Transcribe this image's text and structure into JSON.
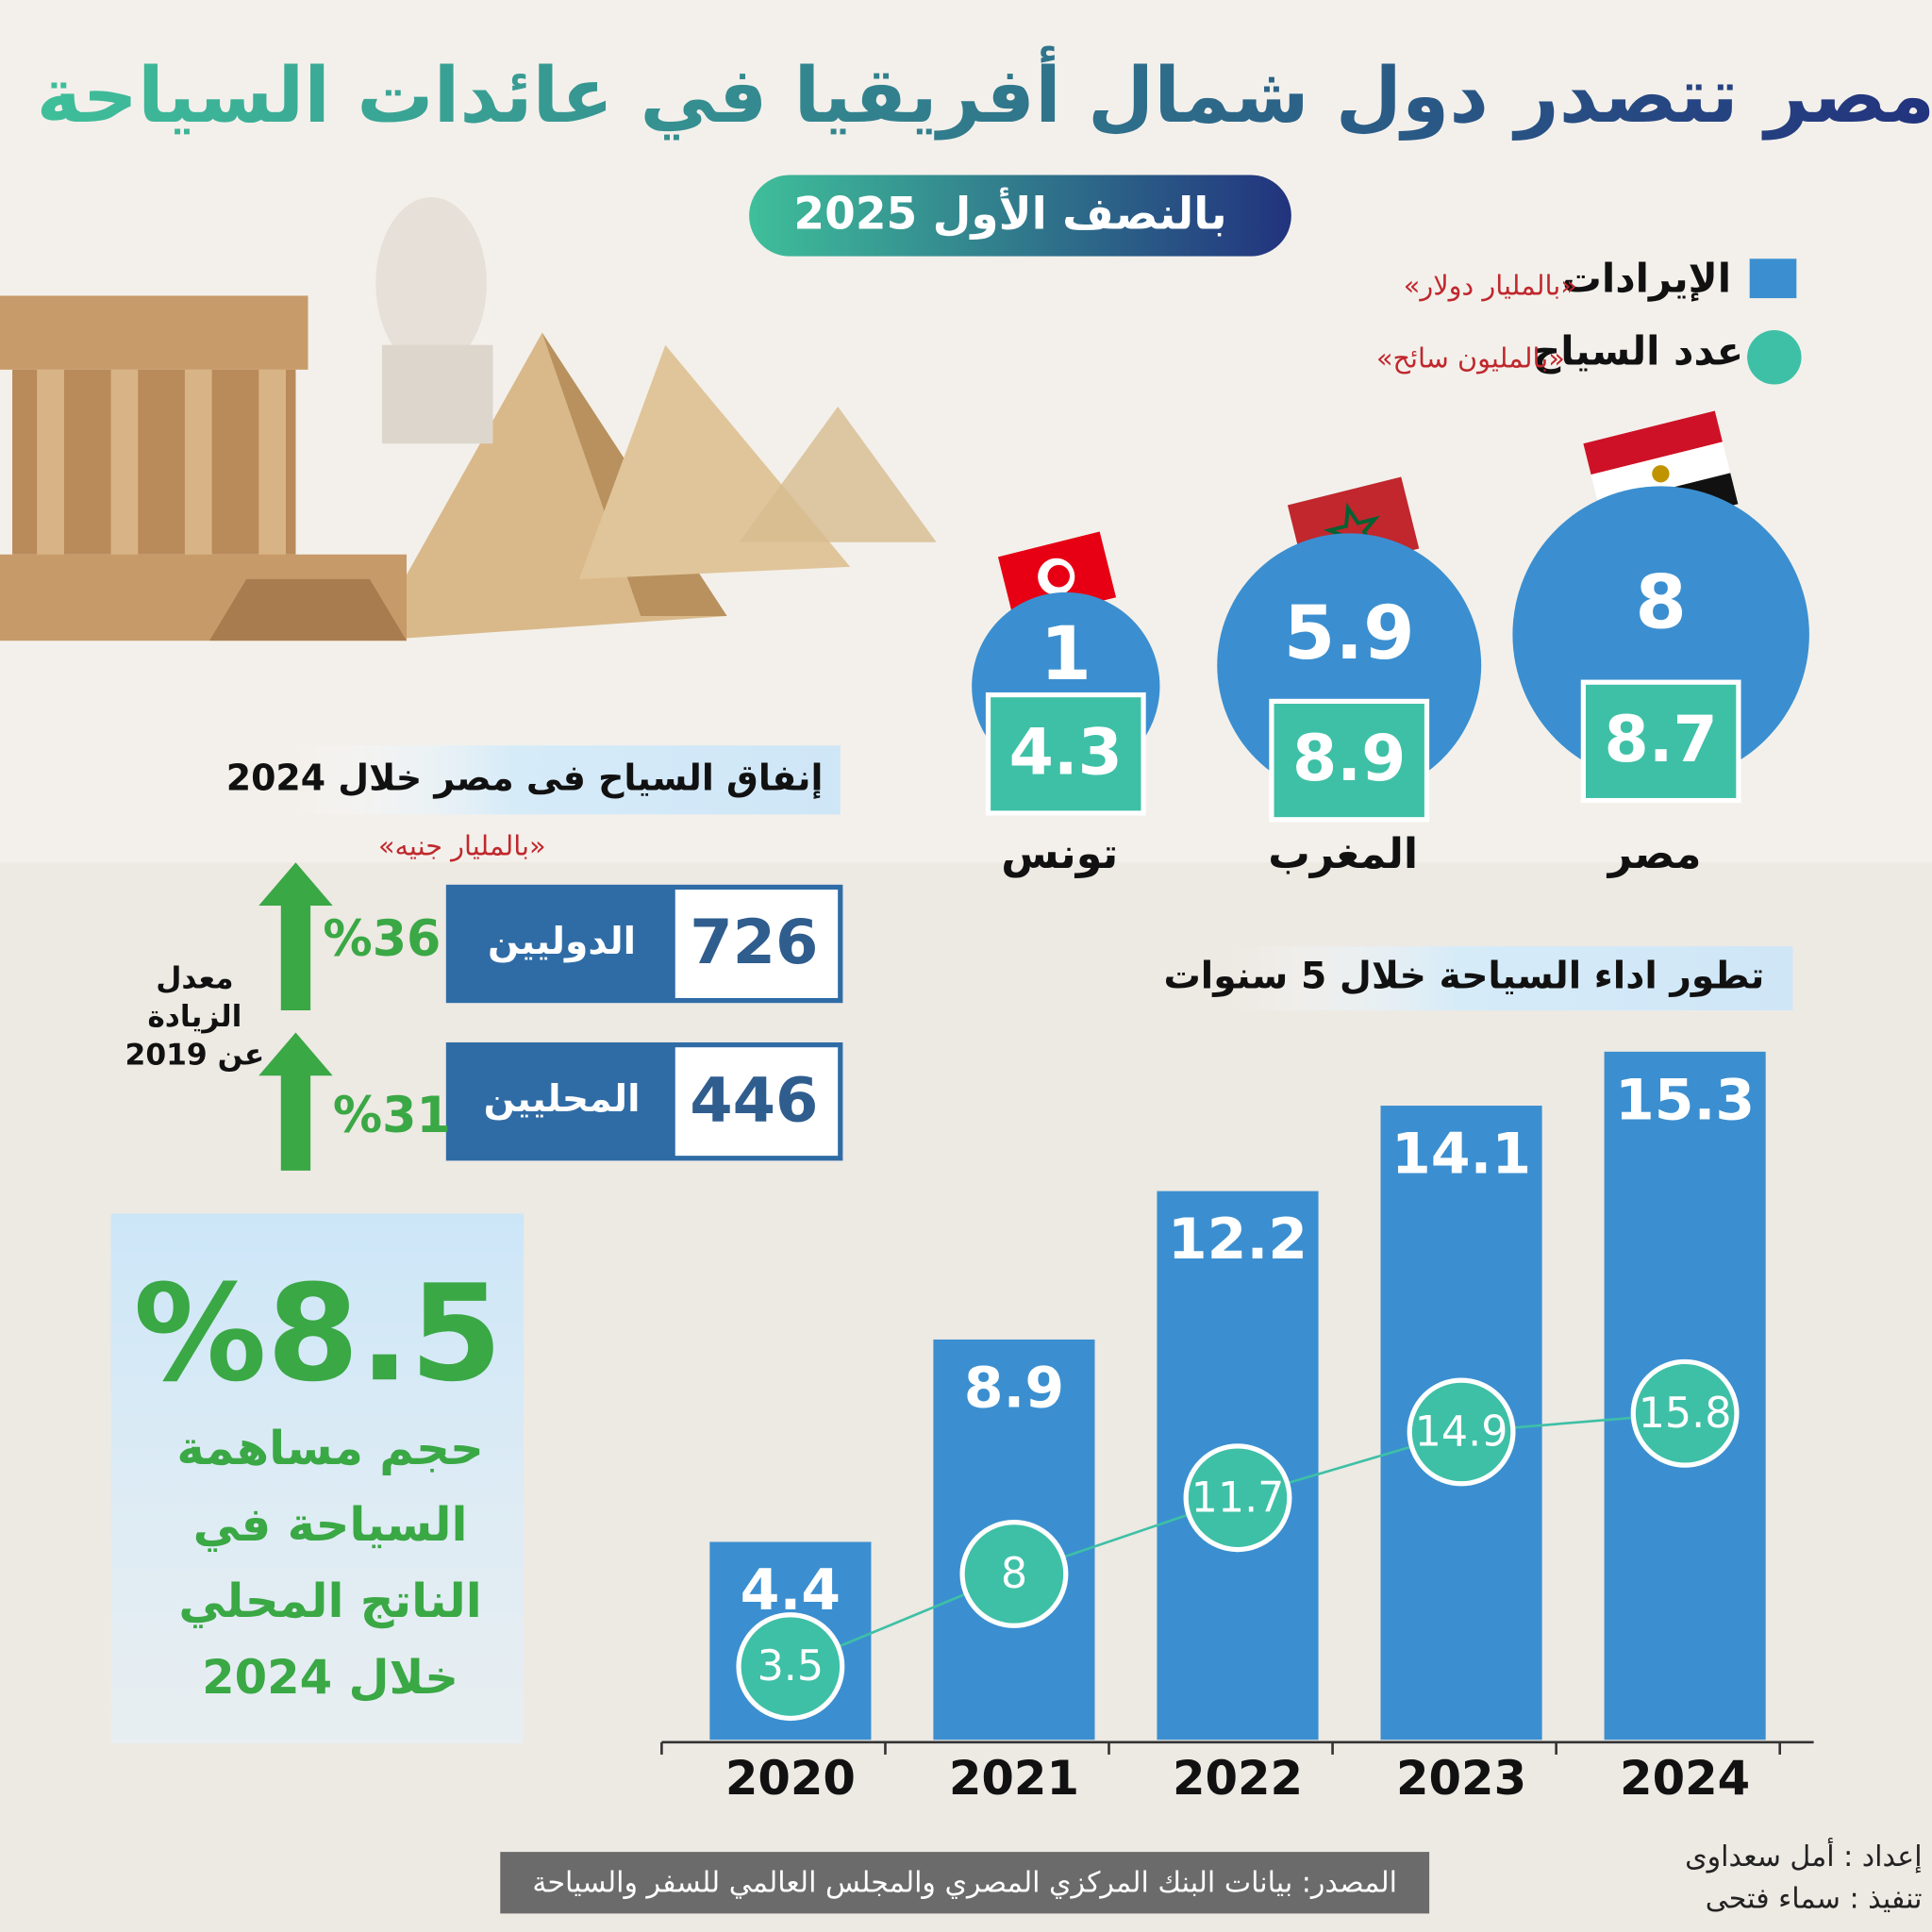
{
  "title": "مصر تتصدر دول شمال أفريقيا في عائدات السياحة",
  "subtitle": "بالنصف الأول 2025",
  "chart_data": [
    {
      "type": "bubble",
      "categories": [
        "مصر",
        "المغرب",
        "تونس"
      ],
      "series": [
        {
          "name": "الإيرادات",
          "unit": "«بالمليار دولار»",
          "color": "#3b8fd0",
          "values": [
            8,
            5.9,
            1
          ]
        },
        {
          "name": "عدد السياح",
          "unit": "«بالمليون سائح»",
          "color": "#3ec0a6",
          "values": [
            8.7,
            8.9,
            4.3
          ]
        }
      ]
    },
    {
      "type": "bar_line",
      "title": "تطور اداء السياحة خلال 5 سنوات",
      "categories": [
        "2020",
        "2021",
        "2022",
        "2023",
        "2024"
      ],
      "series": [
        {
          "name": "الإيرادات",
          "color": "#3b8fd0",
          "values": [
            4.4,
            8.9,
            12.2,
            14.1,
            15.3
          ]
        },
        {
          "name": "عدد السياح",
          "color": "#3ec0a6",
          "values": [
            3.5,
            8,
            11.7,
            14.9,
            15.8
          ]
        }
      ]
    }
  ],
  "spending": {
    "title": "إنفاق السياح فى مصر خلال 2024",
    "unit": "«بالمليار جنيه»",
    "rows": [
      {
        "label": "الدوليين",
        "value": 726,
        "change": "%36"
      },
      {
        "label": "المحليين",
        "value": 446,
        "change": "%31"
      }
    ],
    "note": [
      "معدل",
      "الزيادة",
      "عن 2019"
    ]
  },
  "share": {
    "headline": "%8.5",
    "lines": [
      "حجم مساهمة",
      "السياحة في",
      "الناتج المحلي",
      "خلال 2024"
    ]
  },
  "source": "المصدر: بيانات البنك المركزي المصري والمجلس العالمي للسفر والسياحة",
  "credits": [
    "إعداد : أمل سعداوى",
    "تنفيذ : سماء فتحى"
  ]
}
